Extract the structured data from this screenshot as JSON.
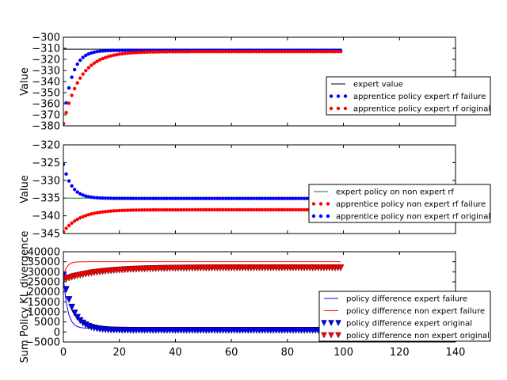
{
  "chart_data": [
    {
      "type": "scatter",
      "title": "",
      "xlabel": "",
      "ylabel": "Value",
      "xlim": [
        0,
        140
      ],
      "ylim": [
        -380,
        -300
      ],
      "yticks": [
        -300,
        -310,
        -320,
        -330,
        -340,
        -350,
        -360,
        -370,
        -380
      ],
      "xticks_shown": false,
      "legend_position": "right",
      "series": [
        {
          "name": "expert value",
          "kind": "line",
          "color": "#000000",
          "x": [
            0,
            99
          ],
          "y": [
            -310.8,
            -310.8
          ]
        },
        {
          "name": "apprentice policy expert rf failure",
          "kind": "dots",
          "color": "#0000ff",
          "x0": 0,
          "n": 100,
          "start": -378.0,
          "end": -311.8,
          "tau": 3.0
        },
        {
          "name": "apprentice policy expert rf original",
          "kind": "dots",
          "color": "#ff0000",
          "x0": 0,
          "n": 100,
          "start": -378.0,
          "end": -313.0,
          "tau": 6.0
        }
      ]
    },
    {
      "type": "scatter",
      "title": "",
      "xlabel": "",
      "ylabel": "Value",
      "xlim": [
        0,
        140
      ],
      "ylim": [
        -345,
        -320
      ],
      "yticks": [
        -320,
        -325,
        -330,
        -335,
        -340,
        -345
      ],
      "xticks_shown": false,
      "legend_position": "right",
      "series": [
        {
          "name": "expert policy on non expert rf",
          "kind": "line",
          "color": "#008000",
          "x": [
            0,
            99
          ],
          "y": [
            -335.0,
            -335.0
          ]
        },
        {
          "name": "apprentice policy non expert rf failure",
          "kind": "dots",
          "color": "#ff0000",
          "x0": 0,
          "n": 100,
          "start": -344.5,
          "end": -338.3,
          "tau": 6.0
        },
        {
          "name": "apprentice policy non expert rf original",
          "kind": "dots",
          "color": "#0000ff",
          "x0": 0,
          "n": 100,
          "start": -325.5,
          "end": -335.1,
          "tau": 3.0
        }
      ]
    },
    {
      "type": "line",
      "title": "",
      "xlabel": "",
      "ylabel": "Sum Policy KL divergence",
      "xlim": [
        0,
        140
      ],
      "ylim": [
        -5000,
        40000
      ],
      "xticks": [
        0,
        20,
        40,
        60,
        80,
        100,
        120,
        140
      ],
      "yticks": [
        40000,
        35000,
        30000,
        25000,
        20000,
        15000,
        10000,
        5000,
        0,
        -5000
      ],
      "legend_position": "right",
      "series": [
        {
          "name": "policy difference expert failure",
          "kind": "line",
          "color": "#0000ff",
          "x0": 0,
          "n": 100,
          "start": 27000,
          "end": 1800,
          "tau": 1.5
        },
        {
          "name": "policy difference non expert failure",
          "kind": "line",
          "color": "#ff0000",
          "x0": 0,
          "n": 100,
          "start": 28000,
          "end": 35000,
          "tau": 1.2
        },
        {
          "name": "policy difference expert original",
          "kind": "triangles",
          "color": "#0000ff",
          "x0": 0,
          "n": 100,
          "start": 28000,
          "end": 800,
          "tau": 3.5
        },
        {
          "name": "policy difference non expert original",
          "kind": "triangles",
          "color": "#ff0000",
          "x0": 0,
          "n": 100,
          "start": 26000,
          "end": 32000,
          "tau": 12.0
        }
      ]
    }
  ]
}
